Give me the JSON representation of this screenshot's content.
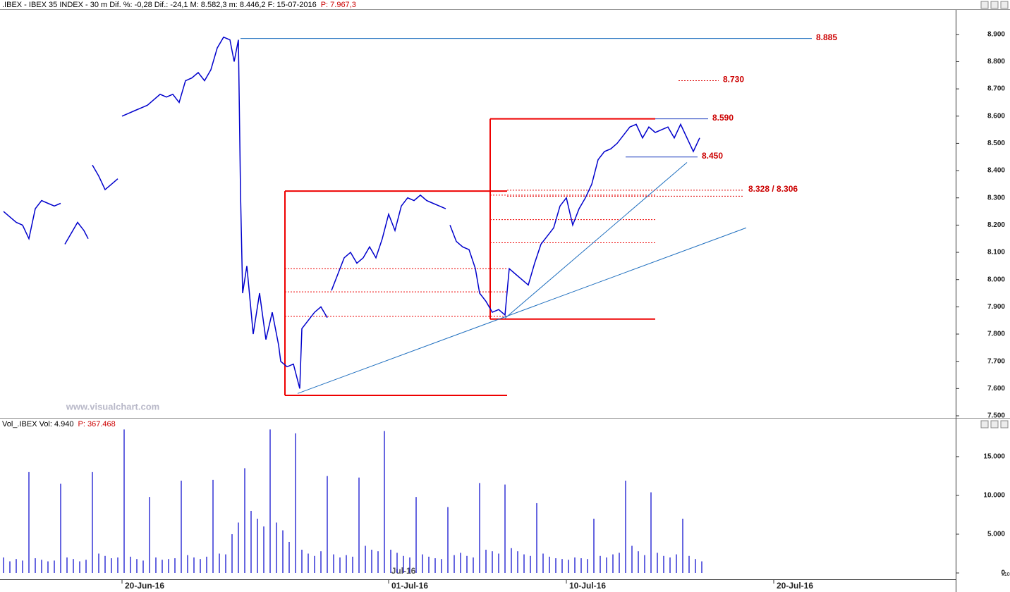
{
  "watermark": "www.visualchart.com",
  "chart_data": [
    {
      "type": "line",
      "title": ".IBEX - IBEX 35 INDEX - 30 m Dif. %: -0,28 Dif.: -24,1 M: 8.582,3 m: 8.446,2 F: 15-07-2016",
      "last_price": "P: 7.967,3",
      "xlim": [
        0,
        450
      ],
      "ylim": [
        7500,
        8990
      ],
      "yticks": [
        {
          "value": 7500,
          "label": "7.500"
        },
        {
          "value": 7600,
          "label": "7.600"
        },
        {
          "value": 7700,
          "label": "7.700"
        },
        {
          "value": 7800,
          "label": "7.800"
        },
        {
          "value": 7900,
          "label": "7.900"
        },
        {
          "value": 8000,
          "label": "8.000"
        },
        {
          "value": 8100,
          "label": "8.100"
        },
        {
          "value": 8200,
          "label": "8.200"
        },
        {
          "value": 8300,
          "label": "8.300"
        },
        {
          "value": 8400,
          "label": "8.400"
        },
        {
          "value": 8500,
          "label": "8.500"
        },
        {
          "value": 8600,
          "label": "8.600"
        },
        {
          "value": 8700,
          "label": "8.700"
        },
        {
          "value": 8800,
          "label": "8.800"
        },
        {
          "value": 8900,
          "label": "8.900"
        }
      ],
      "series": [
        {
          "name": "IBEX",
          "color": "#0000cc",
          "x": [
            0,
            3,
            6,
            9,
            12,
            15,
            18,
            21,
            24,
            27,
            28,
            29,
            32,
            35,
            38,
            40,
            41,
            42,
            45,
            48,
            51,
            54,
            55,
            56,
            59,
            62,
            65,
            68,
            71,
            74,
            77,
            80,
            83,
            86,
            89,
            92,
            95,
            98,
            101,
            104,
            107,
            109,
            111,
            112,
            113,
            115,
            118,
            121,
            124,
            127,
            130,
            131,
            134,
            137,
            140,
            141,
            144,
            147,
            150,
            153,
            154,
            155,
            158,
            161,
            164,
            167,
            170,
            173,
            176,
            179,
            182,
            185,
            188,
            191,
            194,
            197,
            200,
            203,
            206,
            209,
            210,
            211,
            214,
            217,
            220,
            223,
            225,
            228,
            231,
            234,
            237,
            239,
            242,
            245,
            248,
            251,
            254,
            257,
            260,
            263,
            266,
            269,
            272,
            275,
            278,
            281,
            284,
            287,
            290,
            293,
            296,
            299,
            302,
            305,
            308,
            311,
            314,
            317,
            320,
            323,
            326,
            329
          ],
          "values": [
            8250,
            8230,
            8210,
            8200,
            8150,
            8260,
            8290,
            8280,
            8270,
            8280,
            null,
            8130,
            8170,
            8210,
            8180,
            8150,
            null,
            8420,
            8380,
            8330,
            8350,
            8370,
            null,
            8600,
            8610,
            8620,
            8630,
            8640,
            8660,
            8680,
            8670,
            8680,
            8650,
            8730,
            8740,
            8760,
            8730,
            8770,
            8850,
            8890,
            8880,
            8800,
            8880,
            8320,
            7950,
            8050,
            7800,
            7950,
            7780,
            7880,
            7760,
            7700,
            7680,
            7690,
            7600,
            7820,
            7850,
            7880,
            7900,
            7860,
            null,
            7960,
            8020,
            8080,
            8100,
            8060,
            8080,
            8120,
            8080,
            8150,
            8240,
            8180,
            8270,
            8300,
            8290,
            8310,
            8290,
            8280,
            8270,
            8260,
            null,
            8200,
            8140,
            8120,
            8110,
            8040,
            7950,
            7920,
            7880,
            7890,
            7870,
            8040,
            8020,
            8000,
            7980,
            8060,
            8130,
            8160,
            8190,
            8270,
            8300,
            8200,
            8260,
            8300,
            8350,
            8440,
            8470,
            8480,
            8500,
            8530,
            8560,
            8570,
            8520,
            8560,
            8540,
            8550,
            8560,
            8520,
            8570,
            8520,
            8470,
            8520
          ]
        }
      ],
      "levels": [
        {
          "label": "8.885",
          "values": [
            8885
          ],
          "x": [
            112,
            382
          ],
          "color": "#1f6fbf",
          "style": "solid"
        },
        {
          "label": "8.730",
          "values": [
            8730
          ],
          "x": [
            319,
            338
          ],
          "color": "#dd0000",
          "style": "dashed"
        },
        {
          "label": "8.590",
          "values": [
            8590
          ],
          "x": [
            308,
            333
          ],
          "color": "#1f3fbf",
          "style": "solid"
        },
        {
          "label": "8.450",
          "values": [
            8450
          ],
          "x": [
            294,
            328
          ],
          "color": "#1f3fbf",
          "style": "solid"
        },
        {
          "label": "8.328 / 8.306",
          "values": [
            8328,
            8306
          ],
          "x": [
            238,
            350
          ],
          "color": "#dd0000",
          "style": "dashed"
        }
      ],
      "boxes": [
        {
          "x": [
            133,
            238
          ],
          "y": [
            7575,
            8325
          ],
          "levels": [
            7865,
            7955,
            8040
          ],
          "color": "#ee0000"
        },
        {
          "x": [
            230,
            308
          ],
          "y": [
            7855,
            8590
          ],
          "levels": [
            8135,
            8220,
            8310
          ],
          "color": "#ee0000"
        }
      ],
      "trendlines": [
        {
          "x": [
            139,
            351
          ],
          "y": [
            7582,
            8190
          ],
          "color": "#1f6fbf"
        },
        {
          "x": [
            237,
            323
          ],
          "y": [
            7858,
            8430
          ],
          "color": "#1f6fbf"
        }
      ]
    },
    {
      "type": "bar",
      "title": "Vol_.IBEX Vol: 4.940",
      "last_price": "P: 367.468",
      "scale_note": "x10",
      "annotation": "Jul-16",
      "xlim": [
        0,
        450
      ],
      "ylim": [
        0,
        18900
      ],
      "yticks": [
        0,
        {
          "value": 5000,
          "label": "5.000"
        },
        {
          "value": 10000,
          "label": "10.000"
        },
        {
          "value": 15000,
          "label": "15.000"
        }
      ],
      "xticks": [
        {
          "value": 56,
          "label": "20-Jun-16"
        },
        {
          "value": 182,
          "label": "01-Jul-16"
        },
        {
          "value": 266,
          "label": "10-Jul-16"
        },
        {
          "value": 364,
          "label": "20-Jul-16"
        }
      ],
      "series": [
        {
          "name": "Vol",
          "color": "#0000cc",
          "x": [
            0,
            3,
            6,
            9,
            12,
            15,
            18,
            21,
            24,
            27,
            30,
            33,
            36,
            39,
            42,
            45,
            48,
            51,
            54,
            57,
            60,
            63,
            66,
            69,
            72,
            75,
            78,
            81,
            84,
            87,
            90,
            93,
            96,
            99,
            102,
            105,
            108,
            111,
            114,
            117,
            120,
            123,
            126,
            129,
            132,
            135,
            138,
            141,
            144,
            147,
            150,
            153,
            156,
            159,
            162,
            165,
            168,
            171,
            174,
            177,
            180,
            183,
            186,
            189,
            192,
            195,
            198,
            201,
            204,
            207,
            210,
            213,
            216,
            219,
            222,
            225,
            228,
            231,
            234,
            237,
            240,
            243,
            246,
            249,
            252,
            255,
            258,
            261,
            264,
            267,
            270,
            273,
            276,
            279,
            282,
            285,
            288,
            291,
            294,
            297,
            300,
            303,
            306,
            309,
            312,
            315,
            318,
            321,
            324,
            327,
            330
          ],
          "values": [
            2000,
            1500,
            1800,
            1600,
            13000,
            1900,
            1700,
            1500,
            1600,
            11500,
            2000,
            1800,
            1500,
            1700,
            13000,
            2500,
            2200,
            1900,
            2000,
            18500,
            2100,
            1800,
            1600,
            9800,
            2000,
            1700,
            1800,
            1900,
            11900,
            2300,
            2000,
            1800,
            2100,
            12000,
            2500,
            2400,
            5000,
            6500,
            13500,
            8000,
            7000,
            6000,
            18500,
            6500,
            5500,
            4000,
            18000,
            3000,
            2500,
            2200,
            2800,
            12500,
            2400,
            2000,
            2300,
            2100,
            12300,
            3500,
            3000,
            2800,
            18300,
            3000,
            2600,
            2200,
            2000,
            9800,
            2400,
            2100,
            1900,
            1800,
            8500,
            2300,
            2600,
            2200,
            2000,
            11600,
            3000,
            2800,
            2500,
            11400,
            3200,
            2800,
            2400,
            2200,
            9000,
            2500,
            2100,
            1900,
            1800,
            1700,
            2000,
            1900,
            1800,
            7000,
            2200,
            2000,
            2400,
            2600,
            11900,
            3500,
            2800,
            2300,
            10400,
            2600,
            2200,
            2000,
            2400,
            7000,
            2200,
            1800,
            1500
          ]
        }
      ]
    }
  ]
}
